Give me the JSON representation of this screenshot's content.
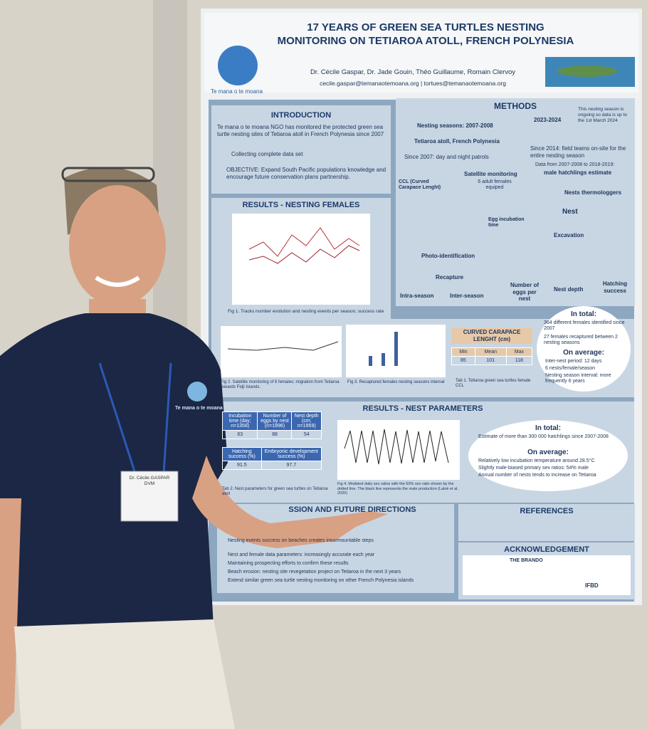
{
  "poster": {
    "title": [
      "17 YEARS OF GREEN SEA TURTLES NESTING",
      "MONITORING ON TETIAROA ATOLL, FRENCH POLYNESIA"
    ],
    "logo": "Te mana o te moana",
    "authors": "Dr. Cécile Gaspar, Dr. Jade Gouin, Théo Guillaume, Romain Clervoy",
    "emails": "cecile.gaspar@temanaotemoana.org | tortues@temanaotemoana.org",
    "introduction": {
      "heading": "INTRODUCTION",
      "text": "Te mana o te moana NGO has monitored the protected green sea turtle nesting sites of Tetiaroa atoll in French Polynesia since 2007",
      "item1": "Collecting complete data set",
      "item2": "OBJECTIVE: Expand South Pacific populations knowledge and encourage future conservation plans partnership."
    },
    "methods": {
      "heading": "METHODS",
      "seasons": "Nesting seasons: 2007-2008",
      "seasons_end": "2023-2024",
      "note": "This nesting season is ongoing so data is up to the 1st March 2024",
      "site": "Tetiaroa atoll, French Polynesia",
      "since2007": "Since 2007: day and night patrols",
      "since2014": "Since 2014: field teams on-site for the entire nesting season",
      "ccl": "CCL (Curved Carapace Lenght)",
      "satellite": "Satellite monitoring",
      "satellite_note": "6 adult females equiped",
      "data_range": "Data from 2007-2008 to 2018-2019:",
      "hatchlings": "male hatchlings estimate",
      "thermo": "Nests thermologgers",
      "nest": "Nest",
      "incubation": "Egg incubation time",
      "excavation": "Excavation",
      "photo_id": "Photo-identification",
      "recapture": "Recapture",
      "intra": "Intra-season",
      "inter": "Inter-season",
      "eggs": "Number of eggs per nest",
      "depth": "Nest depth",
      "hatching": "Hatching success"
    },
    "results_females": {
      "heading": "RESULTS - NESTING FEMALES",
      "fig1": "Fig 1. Tracks number evolution and nesting events per season; success rate",
      "fig2": "Fig 2. Satellite monitoring of 6 females; migration from Tetiaroa towards Fidji Islands.",
      "fig3": "Fig 3. Recaptured females nesting seasons interval",
      "table_title": "CURVED CARAPACE LENGHT (cm)",
      "table_head": [
        "Min",
        "Mean",
        "Max"
      ],
      "table_row": [
        85,
        101,
        118
      ],
      "tab1": "Tab 1. Tetiaroa green sea turtles female CCL",
      "total_heading": "In total:",
      "total1": "364 different females identified since 2007",
      "total2": "27 females recaptured between 2 nesting seasons",
      "avg_heading": "On average:",
      "avg1": "Inter-nest period: 12 days",
      "avg2": "6 nests/female/season",
      "avg3": "Nesting season interval: more frequently 6 years"
    },
    "results_nests": {
      "heading": "RESULTS - NEST PARAMETERS",
      "table_head1": [
        "Incubation time (day; n=1358)",
        "Number of eggs by nest (n=1996)",
        "Nest depth (cm; n=1959)"
      ],
      "table_row1": [
        63,
        88,
        54
      ],
      "table_head2": [
        "Hatching success (%)",
        "Embryonic development success (%)"
      ],
      "table_row2": [
        91.5,
        97.7
      ],
      "tab2": "Tab 2. Nest parameters for green sea turtles on Tetiaroa atoll",
      "fig4": "Fig 4. Modeled daily sex ratios with the 50% sex ratio shown by the dotted line. The black line represents the male production (Laloë et al. 2020)",
      "total_heading": "In total:",
      "total1": "Estimate of more than 300 000 hatchlings since 2007-2008",
      "avg_heading": "On average:",
      "avg1": "Relatively low incubation temperature around 28.5°C",
      "avg2": "Slightly male-biased primary sex ratios: 54% male",
      "avg3": "Annual number of nests tends to increase on Tetiaroa"
    },
    "discussion": {
      "heading": "SSION AND FUTURE DIRECTIONS",
      "items": [
        "Nesting events success on beaches creates insurmountable steps",
        "Nest and female data parameters: increasingly accurate each year",
        "Maintaining prospecting efforts to confirm these results",
        "Beach erosion: nesting site revegetation project on Tetiaroa in the next 3 years",
        "Extend similar green sea turtle nesting monitoring on other French Polynesia islands"
      ]
    },
    "references": {
      "heading": "REFERENCES"
    },
    "acknowledgement": {
      "heading": "ACKNOWLEDGEMENT",
      "logos": [
        "THE BRANDO",
        "IFBD"
      ]
    }
  },
  "badge": "Dr. Cécile GASPAR DVM",
  "shirt_logo": "Te mana o te moana"
}
